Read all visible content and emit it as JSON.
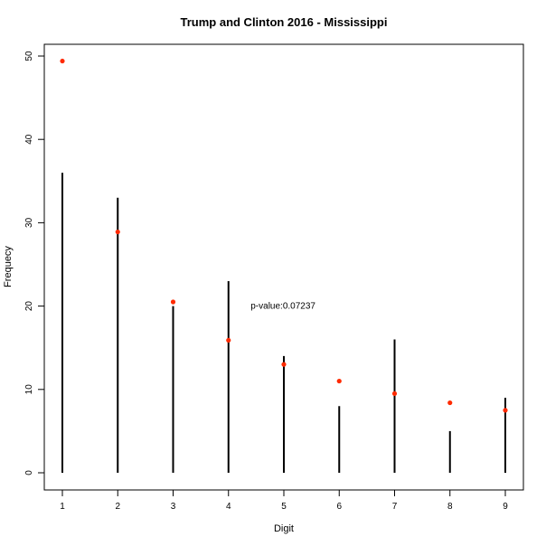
{
  "chart_data": {
    "type": "scatter",
    "title": "Trump and Clinton 2016 - Mississippi",
    "xlabel": "Digit",
    "ylabel": "Frequecy",
    "x": [
      1,
      2,
      3,
      4,
      5,
      6,
      7,
      8,
      9
    ],
    "xlim": [
      1,
      9
    ],
    "ylim": [
      0,
      50
    ],
    "x_ticks": [
      "1",
      "2",
      "3",
      "4",
      "5",
      "6",
      "7",
      "8",
      "9"
    ],
    "y_ticks": [
      "0",
      "10",
      "20",
      "30",
      "40",
      "50"
    ],
    "grid": false,
    "series": [
      {
        "style": "vertical-lines",
        "color": "#000000",
        "values": [
          36,
          33,
          20,
          23,
          14,
          8,
          16,
          5,
          9
        ]
      },
      {
        "style": "points",
        "color": "#ff2a00",
        "values": [
          49.4,
          28.9,
          20.5,
          15.9,
          13.0,
          11.0,
          9.5,
          8.4,
          7.5
        ]
      }
    ],
    "annotation": {
      "text": "p-value:0.07237",
      "x": 4.4,
      "y": 20
    }
  }
}
